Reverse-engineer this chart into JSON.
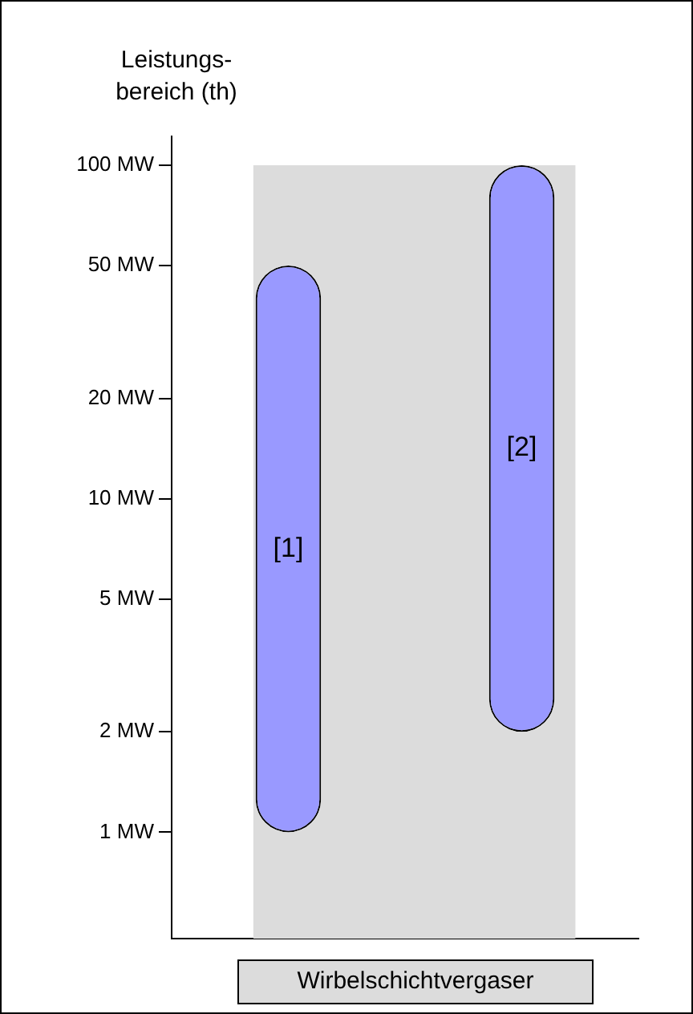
{
  "chart_data": {
    "type": "bar",
    "xlabel": "Wirbelschichtvergaser",
    "ylabel": "Leistungs-\nbereich (th)",
    "categories": [
      "[1]",
      "[2]"
    ],
    "base": [
      1,
      2
    ],
    "values": [
      49,
      98
    ],
    "color": "#9999ff",
    "log": "y",
    "ylim": [
      0.48,
      122
    ],
    "yticks": [
      {
        "value": 1,
        "label": "1 MW"
      },
      {
        "value": 2,
        "label": "2 MW"
      },
      {
        "value": 5,
        "label": "5 MW"
      },
      {
        "value": 10,
        "label": "10 MW"
      },
      {
        "value": 20,
        "label": "20 MW"
      },
      {
        "value": 50,
        "label": "50 MW"
      },
      {
        "value": 100,
        "label": "100 MW"
      }
    ],
    "bands": [
      {
        "axis": "y",
        "from": 0.48,
        "to": 100,
        "color": "#dcdcdc"
      }
    ],
    "grid": false,
    "legend": false
  }
}
